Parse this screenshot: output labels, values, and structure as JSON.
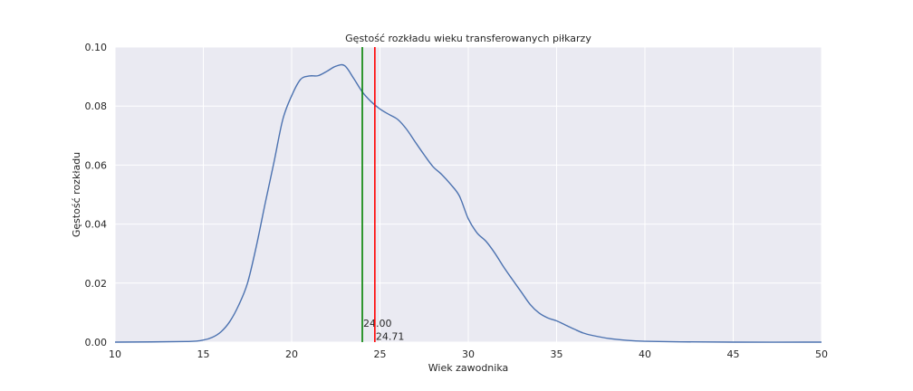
{
  "chart_data": {
    "type": "line",
    "title": "Gęstość rozkładu wieku transferowanych piłkarzy",
    "xlabel": "Wiek zawodnika",
    "ylabel": "Gęstość rozkładu",
    "xlim": [
      10,
      50
    ],
    "ylim": [
      0,
      0.1
    ],
    "x_ticks": [
      "10",
      "15",
      "20",
      "25",
      "30",
      "35",
      "40",
      "45",
      "50"
    ],
    "y_ticks": [
      "0.00",
      "0.02",
      "0.04",
      "0.06",
      "0.08",
      "0.10"
    ],
    "grid": true,
    "legend": "none",
    "series": [
      {
        "color": "#4c72b0",
        "x": [
          10,
          14,
          15,
          15.5,
          16,
          16.5,
          17,
          17.5,
          18,
          18.5,
          19,
          19.5,
          20,
          20.5,
          21,
          21.5,
          22,
          22.5,
          23,
          23.5,
          24,
          24.5,
          25,
          25.5,
          26,
          26.5,
          27,
          27.5,
          28,
          28.5,
          29,
          29.5,
          30,
          30.5,
          31,
          31.5,
          32,
          32.5,
          33,
          33.5,
          34,
          34.5,
          35,
          35.5,
          36,
          36.5,
          37,
          38,
          39,
          40,
          42,
          45,
          50
        ],
        "y": [
          0,
          0.0002,
          0.0007,
          0.0016,
          0.0035,
          0.007,
          0.0125,
          0.02,
          0.0325,
          0.047,
          0.061,
          0.0755,
          0.0835,
          0.089,
          0.0902,
          0.0903,
          0.0918,
          0.0935,
          0.0937,
          0.0895,
          0.0848,
          0.0815,
          0.079,
          0.0772,
          0.0755,
          0.0722,
          0.0678,
          0.0635,
          0.0595,
          0.0568,
          0.0535,
          0.0495,
          0.0418,
          0.037,
          0.0342,
          0.0302,
          0.0255,
          0.0212,
          0.017,
          0.0128,
          0.0099,
          0.0082,
          0.0072,
          0.0058,
          0.0044,
          0.0031,
          0.0023,
          0.0012,
          0.0006,
          0.0003,
          0.0001,
          0,
          0
        ]
      }
    ],
    "vlines": [
      {
        "x": 24.0,
        "color": "#008000",
        "label": "24.00",
        "label_y": 0.0052
      },
      {
        "x": 24.71,
        "color": "#ff0000",
        "label": "24.71",
        "label_y": 0.0008
      }
    ]
  }
}
